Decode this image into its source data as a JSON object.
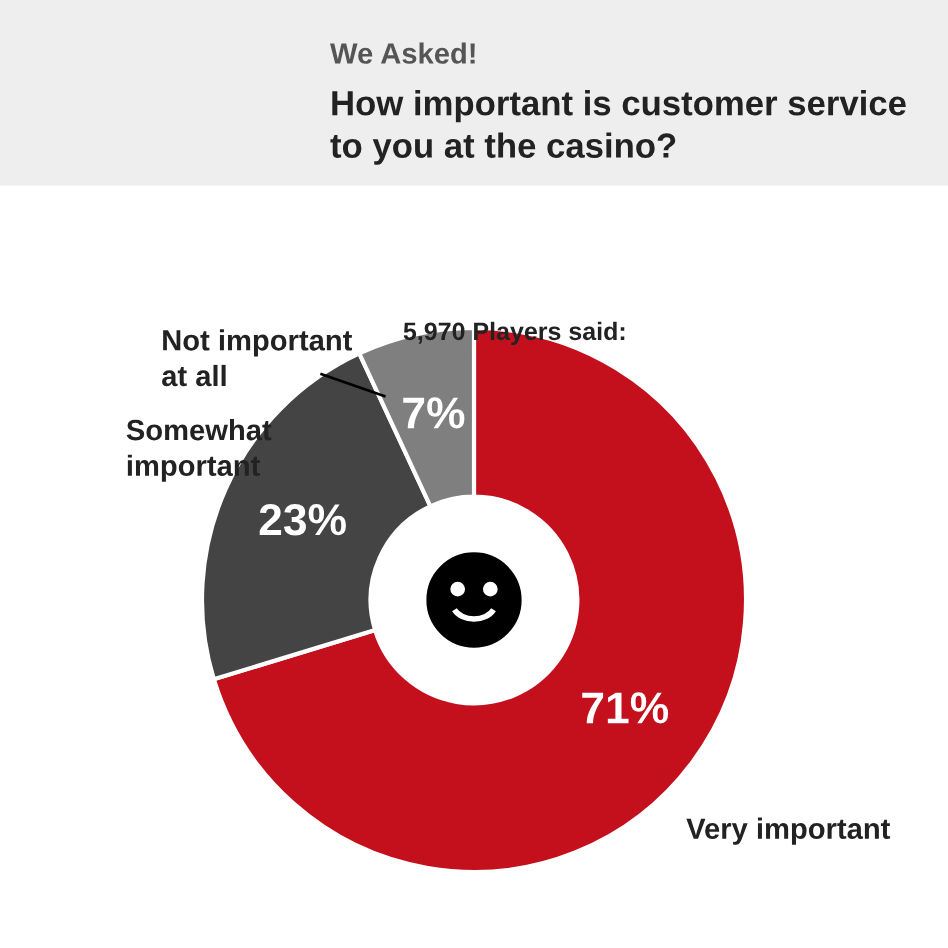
{
  "chart_data": {
    "type": "donut",
    "title": "How important is customer service to you at the casino?",
    "subtitle": "We Asked!",
    "annotations": [
      "5,970 Players said:"
    ],
    "categories": [
      "Very important",
      "Somewhat important",
      "Not important at all"
    ],
    "values": [
      71,
      23,
      7
    ],
    "value_labels": [
      "71%",
      "23%",
      "7%"
    ],
    "colors": [
      "#c4101c",
      "#444444",
      "#7f7f7f"
    ]
  }
}
